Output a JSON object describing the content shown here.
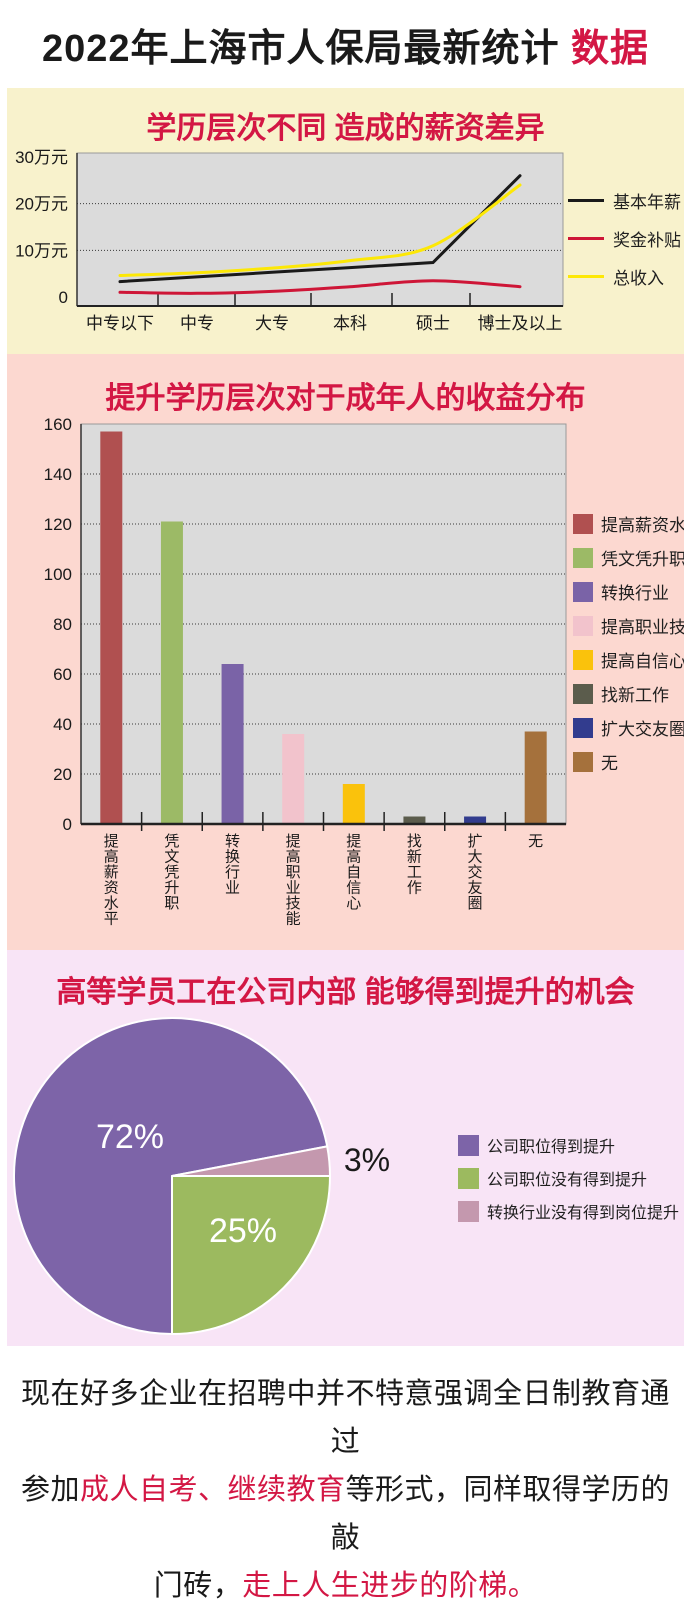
{
  "header": {
    "title_black": "2022年上海市人保局最新统计 ",
    "title_red": "数据"
  },
  "colors": {
    "accent_red": "#d31744",
    "section1_bg": "#f8f2cc",
    "section2_bg": "#fcd8d0",
    "section3_bg": "#f8e4f6",
    "plot_bg": "#dbdbdb"
  },
  "chart_data": [
    {
      "type": "line",
      "title": "学历层次不同 造成的薪资差异",
      "categories": [
        "中专以下",
        "中专",
        "大专",
        "本科",
        "硕士",
        "博士及以上"
      ],
      "unit": "万元",
      "ylim": [
        0,
        30
      ],
      "y_ticks": [
        {
          "v": 30,
          "label": "30万元"
        },
        {
          "v": 20,
          "label": "20万元"
        },
        {
          "v": 10,
          "label": "10万元"
        },
        {
          "v": 0,
          "label": "0"
        }
      ],
      "grid": "dotted horizontal at 10 and 20",
      "legend_position": "right",
      "series": [
        {
          "name": "基本年薪",
          "color": "#1a1a1a",
          "smooth": false,
          "values": [
            3.3,
            4.3,
            5.3,
            6.3,
            7.4,
            26
          ]
        },
        {
          "name": "奖金补贴",
          "color": "#ce1637",
          "smooth": true,
          "values": [
            1,
            0.8,
            1.2,
            2.2,
            3.5,
            2.2
          ]
        },
        {
          "name": "总收入",
          "color": "#fde806",
          "smooth": true,
          "values": [
            4.6,
            5.2,
            6.2,
            7.8,
            11,
            24
          ]
        }
      ]
    },
    {
      "type": "bar",
      "title": "提升学历层次对于成年人的收益分布",
      "categories": [
        "提高薪资水平",
        "凭文凭升职",
        "转换行业",
        "提高职业技能",
        "提高自信心",
        "找新工作",
        "扩大交友圈",
        "无"
      ],
      "values": [
        157,
        121,
        64,
        36,
        16,
        3,
        3,
        37
      ],
      "colors": [
        "#b05050",
        "#9cba66",
        "#7a63a7",
        "#f2c3cc",
        "#fac20c",
        "#5b5c4c",
        "#323c8e",
        "#a5713c"
      ],
      "ylim": [
        0,
        160
      ],
      "y_tick_step": 20,
      "grid": "dotted horizontal every 20",
      "legend_position": "right"
    },
    {
      "type": "pie",
      "title": "高等学员工在公司内部 能够得到提升的机会",
      "slices": [
        {
          "label": "公司职位得到提升",
          "pct": 72,
          "color": "#7d64a8",
          "label_text": "72%",
          "label_color": "#ffffff",
          "label_pos": {
            "x": 123,
            "y": 198
          }
        },
        {
          "label": "转换行业没有得到岗位提升",
          "pct": 3,
          "color": "#c498ae",
          "label_text": "3%",
          "label_color": "#1a1a1a",
          "label_pos": {
            "x": 360,
            "y": 221
          }
        },
        {
          "label": "公司职位没有得到提升",
          "pct": 25,
          "color": "#9cba5f",
          "label_text": "25%",
          "label_color": "#ffffff",
          "label_pos": {
            "x": 236,
            "y": 292
          }
        }
      ],
      "legend": [
        {
          "label": "公司职位得到提升",
          "color": "#7d64a8"
        },
        {
          "label": "公司职位没有得到提升",
          "color": "#9cba5f"
        },
        {
          "label": "转换行业没有得到岗位提升",
          "color": "#c498ae"
        }
      ]
    }
  ],
  "footer": {
    "runs": [
      {
        "text": "现在好多企业在招聘中并不特意强调全日制教育通过",
        "color": "black",
        "br": true
      },
      {
        "text": "参加",
        "color": "black"
      },
      {
        "text": "成人自考、继续教育",
        "color": "red"
      },
      {
        "text": "等形式，同样取得学历的敲",
        "color": "black",
        "br": true
      },
      {
        "text": "门砖，",
        "color": "black"
      },
      {
        "text": "走上人生进步的阶梯。",
        "color": "red"
      }
    ]
  }
}
